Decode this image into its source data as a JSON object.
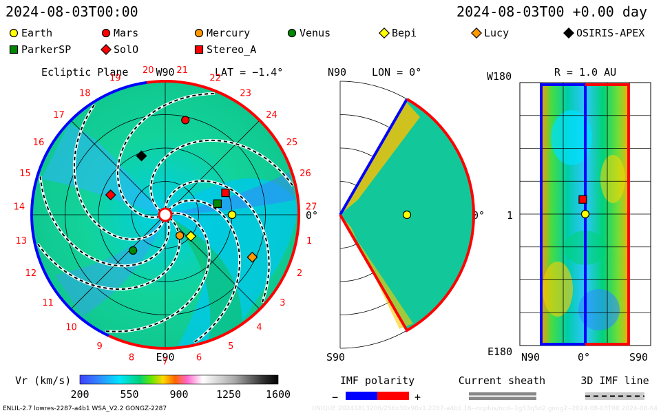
{
  "header": {
    "left_time": "2024-08-03T00:00",
    "right_time": "2024-08-03T00 +0.00 day"
  },
  "legend": [
    {
      "name": "Earth",
      "shape": "circle",
      "color": "#ffff00"
    },
    {
      "name": "Mars",
      "shape": "circle",
      "color": "#ff0000"
    },
    {
      "name": "Mercury",
      "shape": "circle",
      "color": "#ff9900"
    },
    {
      "name": "Venus",
      "shape": "circle",
      "color": "#008800"
    },
    {
      "name": "Bepi",
      "shape": "diamond",
      "color": "#ffff00"
    },
    {
      "name": "Lucy",
      "shape": "diamond",
      "color": "#ff9900"
    },
    {
      "name": "OSIRIS-APEX",
      "shape": "diamond",
      "color": "#000000"
    },
    {
      "name": "ParkerSP",
      "shape": "square",
      "color": "#008800"
    },
    {
      "name": "SolO",
      "shape": "diamond",
      "color": "#ff0000"
    },
    {
      "name": "Stereo_A",
      "shape": "square",
      "color": "#ff0000"
    }
  ],
  "panels": {
    "ecliptic": {
      "title": "Ecliptic Plane",
      "top_label": "W90",
      "bottom_label": "E90",
      "lat_label": "LAT = −1.4°",
      "zero_label": "0°",
      "carrington_labels": [
        "19",
        "20",
        "21",
        "22",
        "23",
        "24",
        "25",
        "26",
        "27",
        "1",
        "2",
        "3",
        "4",
        "5",
        "6",
        "7",
        "8",
        "9",
        "10",
        "11",
        "12",
        "13",
        "14",
        "15",
        "16",
        "17",
        "18"
      ]
    },
    "meridional": {
      "top_label": "N90",
      "bottom_label": "S90",
      "lon_label": "LON = 0°",
      "zero_label": "0°"
    },
    "radial": {
      "r_label": "R = 1.0 AU",
      "top_left": "W180",
      "mid_left": "1",
      "bottom_left": "E180",
      "x_left": "N90",
      "x_mid": "0°",
      "x_right": "S90"
    }
  },
  "colorbar": {
    "label": "Vr (km/s)",
    "ticks": [
      "200",
      "550",
      "900",
      "1250",
      "1600"
    ],
    "colors": [
      "#3c3cff",
      "#2f8cff",
      "#00e6ff",
      "#00d27a",
      "#66e600",
      "#ffd700",
      "#ff6600",
      "#ff66cc",
      "#ffffff",
      "#aaaaaa",
      "#333333",
      "#000000"
    ]
  },
  "imf_polarity": {
    "label": "IMF polarity",
    "minus": "−",
    "plus": "+",
    "neg_color": "#0000ff",
    "pos_color": "#ff0000"
  },
  "current_sheath": {
    "label": "Current sheath"
  },
  "imf_line": {
    "label": "3D IMF line"
  },
  "footer": {
    "left": "ENLIL-2.7 lowres-2287-a4b1 WSA_V2.2 GONGZ-2287",
    "right": "UNIQUE:20241813206/256x30x90x1.2287-a4b1.16--noplus/ncd--1g53q5d2.gong2--2024-08-03T00    2024-08-04"
  },
  "chart_data": [
    {
      "type": "polar",
      "panel": "ecliptic",
      "title": "Ecliptic Plane",
      "quantity": "Vr (km/s)",
      "bodies": [
        {
          "name": "Earth",
          "r_au": 1.0,
          "angle_deg": 0
        },
        {
          "name": "Mars",
          "r_au": 1.45,
          "angle_deg": 78
        },
        {
          "name": "Mercury",
          "r_au": 0.38,
          "angle_deg": -55
        },
        {
          "name": "Venus",
          "r_au": 0.72,
          "angle_deg": -132
        },
        {
          "name": "Bepi",
          "r_au": 0.5,
          "angle_deg": -40
        },
        {
          "name": "Lucy",
          "r_au": 1.45,
          "angle_deg": -26
        },
        {
          "name": "OSIRIS-APEX",
          "r_au": 0.95,
          "angle_deg": 112
        },
        {
          "name": "ParkerSP",
          "r_au": 0.8,
          "angle_deg": 12
        },
        {
          "name": "SolO",
          "r_au": 0.87,
          "angle_deg": 160
        },
        {
          "name": "Stereo_A",
          "r_au": 0.96,
          "angle_deg": 20
        }
      ]
    },
    {
      "type": "polar",
      "panel": "meridional",
      "quantity": "Vr (km/s)",
      "bodies": [
        {
          "name": "Earth",
          "r_au": 1.0,
          "angle_deg": 0
        }
      ]
    },
    {
      "type": "heatmap",
      "panel": "radial",
      "quantity": "Vr (km/s)",
      "r_au": 1.0,
      "bodies": [
        {
          "name": "Earth",
          "lat_deg": 0,
          "lon_deg": 0
        },
        {
          "name": "Stereo_A",
          "lat_deg": -5,
          "lon_deg": 20
        }
      ]
    }
  ]
}
